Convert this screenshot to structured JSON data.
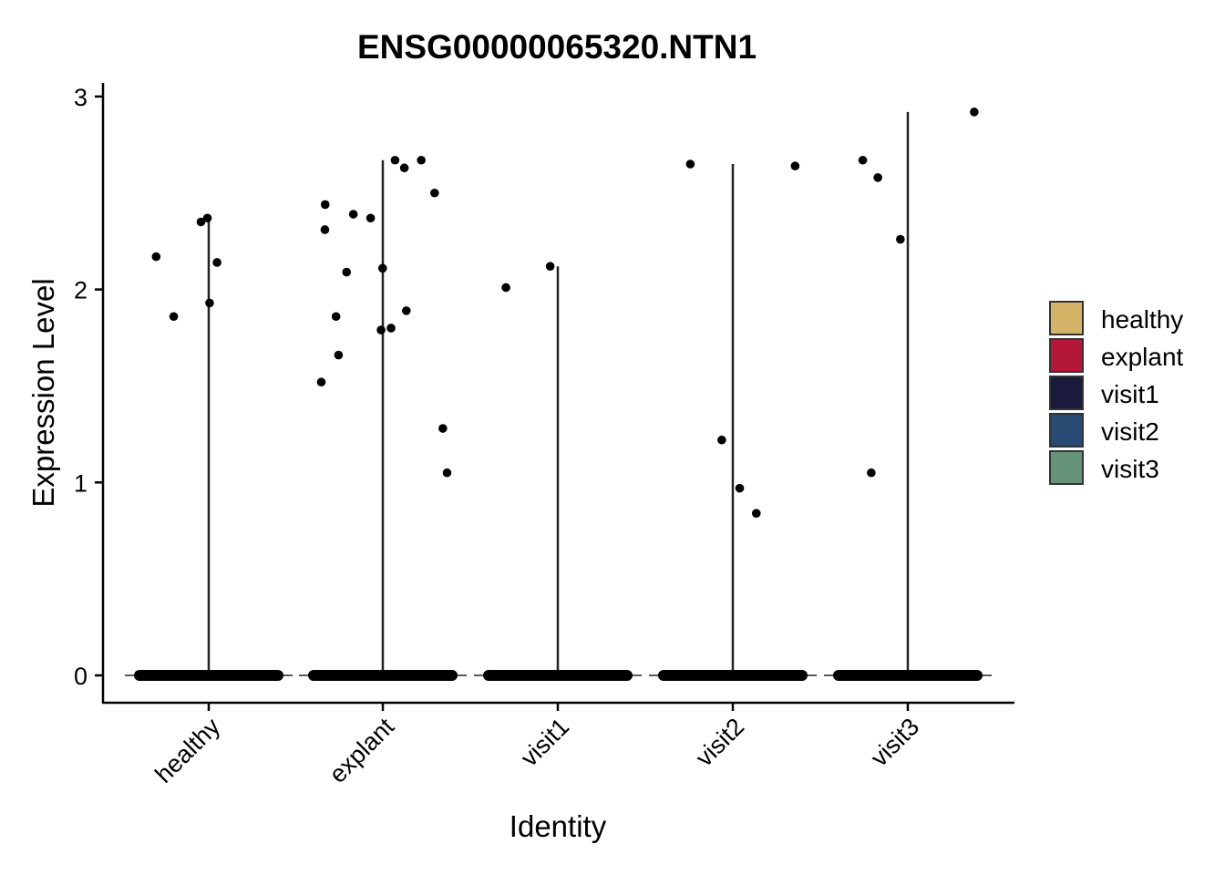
{
  "chart_data": {
    "type": "violin",
    "title": "ENSG00000065320.NTN1",
    "xlabel": "Identity",
    "ylabel": "Expression Level",
    "categories": [
      "healthy",
      "explant",
      "visit1",
      "visit2",
      "visit3"
    ],
    "ylim": [
      -0.14,
      3.06
    ],
    "yticks": [
      0,
      1,
      2,
      3
    ],
    "legend_position": "right",
    "legend": [
      {
        "label": "healthy",
        "color": "#D4B466"
      },
      {
        "label": "explant",
        "color": "#B5173A"
      },
      {
        "label": "visit1",
        "color": "#1A1A3C"
      },
      {
        "label": "visit2",
        "color": "#274B73"
      },
      {
        "label": "visit3",
        "color": "#64937A"
      }
    ],
    "violin_max": [
      2.37,
      2.67,
      2.12,
      2.65,
      2.92
    ],
    "points": [
      {
        "group": "healthy",
        "y": [
          2.37,
          2.14,
          2.17,
          1.86,
          2.35,
          1.93
        ]
      },
      {
        "group": "explant",
        "y": [
          2.44,
          2.5,
          2.67,
          2.37,
          2.39,
          2.67,
          2.63,
          2.31,
          2.11,
          2.09,
          1.89,
          1.86,
          1.8,
          1.79,
          1.66,
          1.52,
          1.28,
          1.05
        ]
      },
      {
        "group": "visit1",
        "y": [
          2.01,
          2.12
        ]
      },
      {
        "group": "visit2",
        "y": [
          2.64,
          2.65,
          1.22,
          0.97,
          0.84
        ]
      },
      {
        "group": "visit3",
        "y": [
          2.58,
          2.67,
          2.92,
          2.26,
          1.05
        ]
      }
    ],
    "zero_band": true
  }
}
